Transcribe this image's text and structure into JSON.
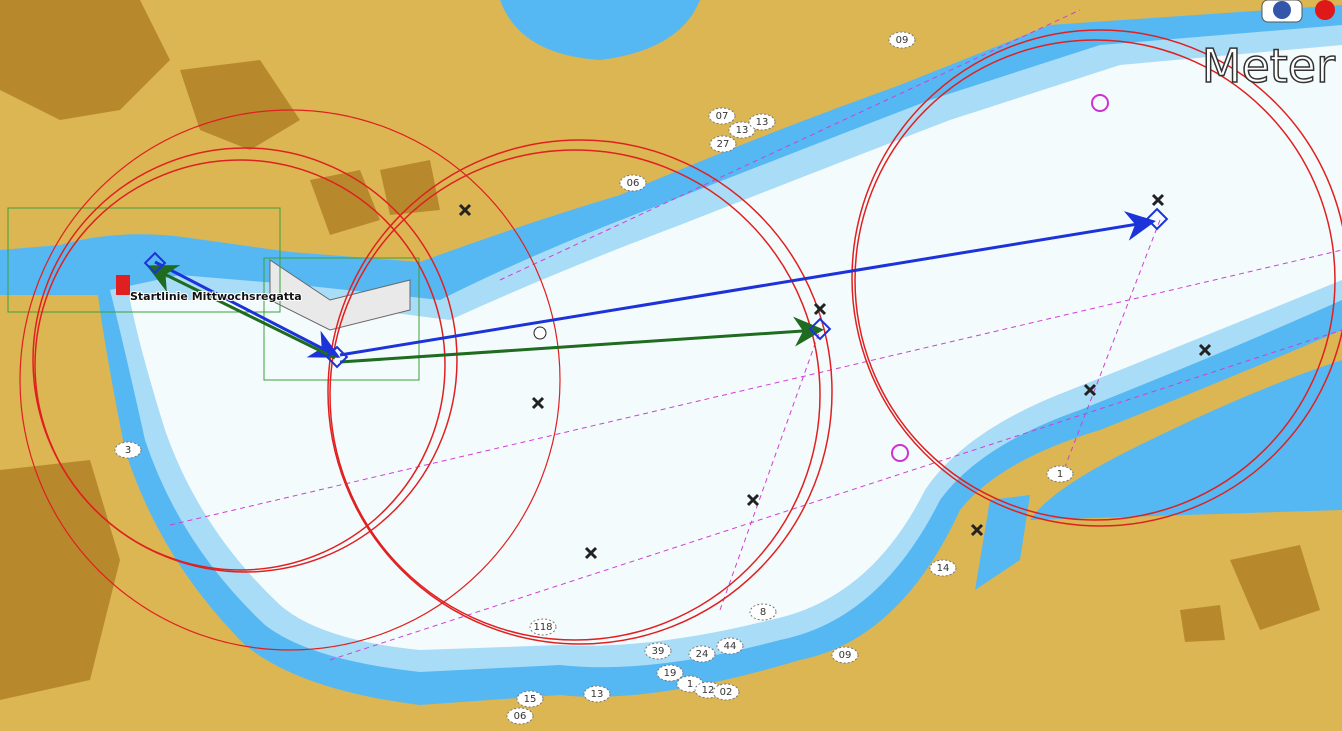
{
  "units": "Meter",
  "start_line": "Startlinie Mittwochsregatta",
  "soundings": [
    "07",
    "13",
    "13",
    "27",
    "06",
    "09",
    "14",
    "8",
    "118",
    "39",
    "24",
    "44",
    "09",
    "19",
    "1",
    "12",
    "02",
    "15",
    "06",
    "13",
    "3",
    "1"
  ]
}
